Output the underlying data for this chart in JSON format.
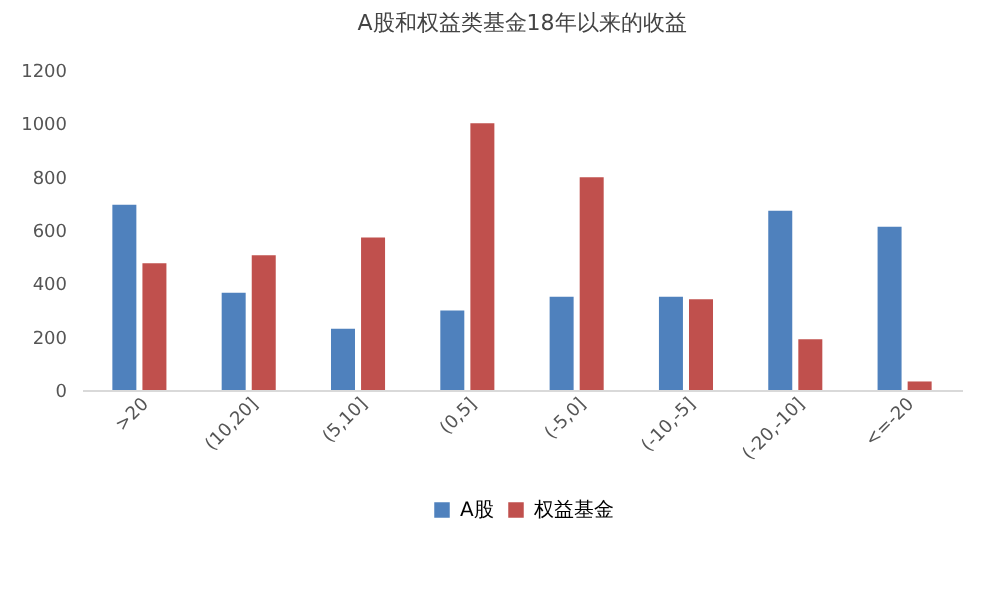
{
  "chart_data": {
    "type": "bar",
    "title": "A股和权益类基金18年以来的收益",
    "categories": [
      ">20",
      "(10,20]",
      "(5,10]",
      "(0,5]",
      "(-5,0]",
      "(-10,-5]",
      "(-20,-10]",
      "<=-20"
    ],
    "series": [
      {
        "name": "A股",
        "color": "#4f81bd",
        "values": [
          695,
          365,
          230,
          298,
          350,
          350,
          672,
          612
        ]
      },
      {
        "name": "权益基金",
        "color": "#c0504d",
        "values": [
          475,
          505,
          572,
          1000,
          798,
          340,
          190,
          32
        ]
      }
    ],
    "ylim": [
      0,
      1200
    ],
    "yticks": [
      0,
      200,
      400,
      600,
      800,
      1000,
      1200
    ],
    "grid": false,
    "legend": "bottom"
  }
}
